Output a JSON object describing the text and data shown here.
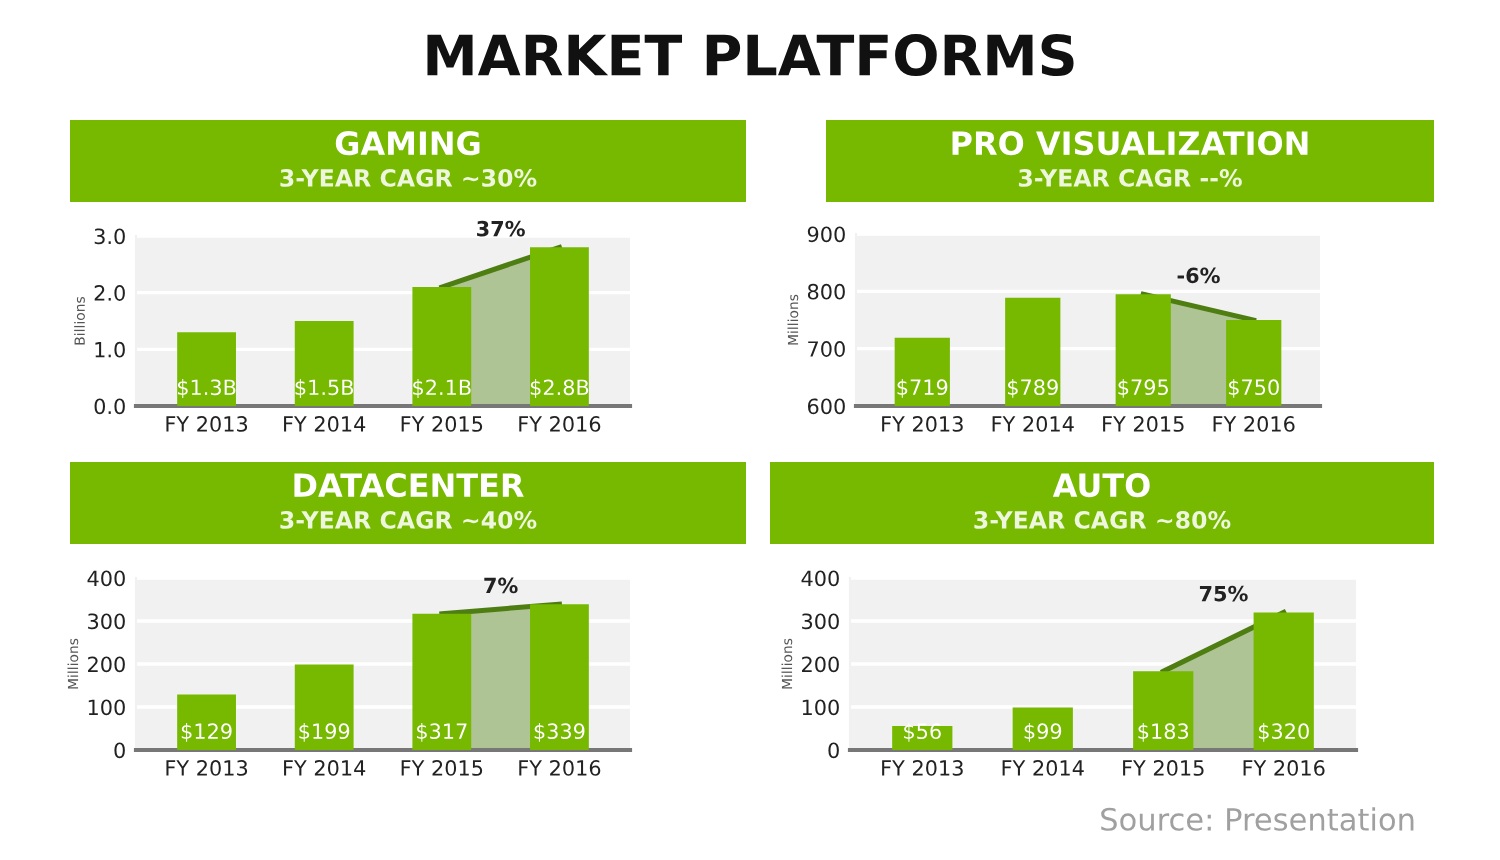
{
  "chart_data": [
    {
      "type": "other",
      "title": "MARKET PLATFORMS"
    },
    {
      "type": "bar",
      "title": "GAMING",
      "subtitle": "3-YEAR CAGR ~30%",
      "ylabel": "Billions",
      "categories": [
        "FY 2013",
        "FY 2014",
        "FY 2015",
        "FY 2016"
      ],
      "ylim": [
        0,
        3
      ],
      "yticks": [
        {
          "value": 0,
          "label": "0.0"
        },
        {
          "value": 1,
          "label": "1.0"
        },
        {
          "value": 2,
          "label": "2.0"
        },
        {
          "value": 3,
          "label": "3.0"
        }
      ],
      "grid": "y",
      "annotations": [
        "37%"
      ],
      "series": [
        {
          "type": "bar",
          "color": "#76b900",
          "values": [
            1.3,
            1.5,
            2.1,
            2.8
          ],
          "value_labels": [
            "$1.3B",
            "$1.5B",
            "$2.1B",
            "$2.8B"
          ]
        },
        {
          "type": "area",
          "color": "#4e7d12",
          "values": [
            null,
            null,
            2.1,
            2.8
          ]
        }
      ]
    },
    {
      "type": "bar",
      "title": "PRO VISUALIZATION",
      "subtitle": "3-YEAR CAGR --%",
      "ylabel": "Millions",
      "categories": [
        "FY 2013",
        "FY 2014",
        "FY 2015",
        "FY 2016"
      ],
      "ylim": [
        600,
        900
      ],
      "yticks": [
        600,
        700,
        800,
        900
      ],
      "grid": "y",
      "annotations": [
        "-6%"
      ],
      "series": [
        {
          "type": "bar",
          "color": "#76b900",
          "values": [
            719,
            789,
            795,
            750
          ],
          "value_labels": [
            "$719",
            "$789",
            "$795",
            "$750"
          ]
        },
        {
          "type": "area",
          "color": "#4e7d12",
          "values": [
            null,
            null,
            795,
            750
          ]
        }
      ]
    },
    {
      "type": "bar",
      "title": "DATACENTER",
      "subtitle": "3-YEAR CAGR ~40%",
      "ylabel": "Millions",
      "categories": [
        "FY 2013",
        "FY 2014",
        "FY 2015",
        "FY 2016"
      ],
      "ylim": [
        0,
        400
      ],
      "yticks": [
        0,
        100,
        200,
        300,
        400
      ],
      "grid": "y",
      "annotations": [
        "7%"
      ],
      "series": [
        {
          "type": "bar",
          "color": "#76b900",
          "values": [
            129,
            199,
            317,
            339
          ],
          "value_labels": [
            "$129",
            "$199",
            "$317",
            "$339"
          ]
        },
        {
          "type": "area",
          "color": "#4e7d12",
          "values": [
            null,
            null,
            317,
            339
          ]
        }
      ]
    },
    {
      "type": "bar",
      "title": "AUTO",
      "subtitle": "3-YEAR CAGR ~80%",
      "ylabel": "Millions",
      "categories": [
        "FY 2013",
        "FY 2014",
        "FY 2015",
        "FY 2016"
      ],
      "ylim": [
        0,
        400
      ],
      "yticks": [
        0,
        100,
        200,
        300,
        400
      ],
      "grid": "y",
      "annotations": [
        "75%"
      ],
      "series": [
        {
          "type": "bar",
          "color": "#76b900",
          "values": [
            56,
            99,
            183,
            320
          ],
          "value_labels": [
            "$56",
            "$99",
            "$183",
            "$320"
          ]
        },
        {
          "type": "area",
          "color": "#4e7d12",
          "values": [
            null,
            null,
            183,
            320
          ]
        }
      ]
    },
    {
      "type": "other",
      "annotations": [
        "Source: Presentation"
      ]
    }
  ]
}
